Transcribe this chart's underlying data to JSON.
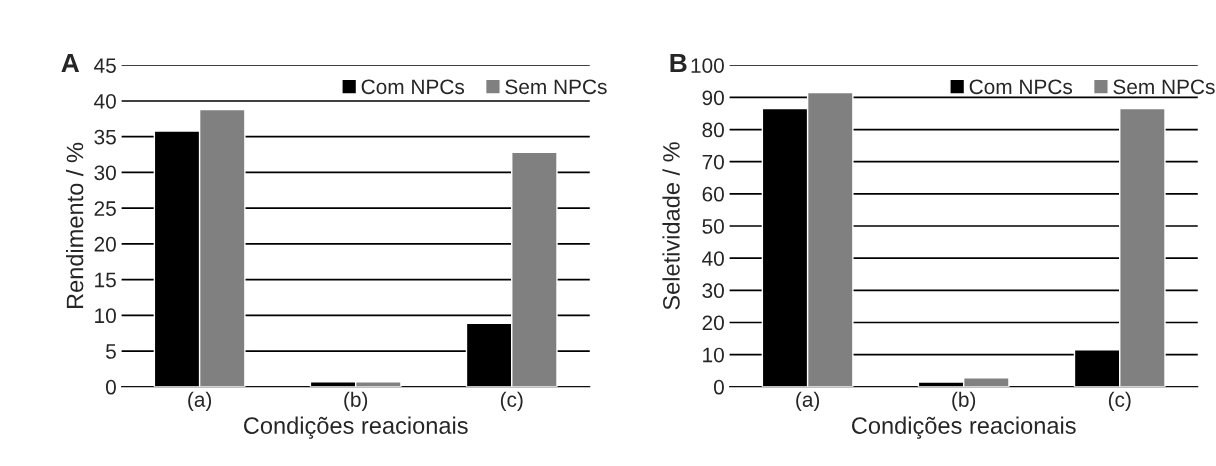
{
  "chart_data": [
    {
      "type": "bar",
      "title": "A",
      "xlabel": "Condições reacionais",
      "ylabel": "Rendimento / %",
      "categories": [
        "(a)",
        "(b)",
        "(c)"
      ],
      "series": [
        {
          "name": "Com NPCs",
          "color": "#000000",
          "values": [
            35.8,
            0.7,
            8.9
          ]
        },
        {
          "name": "Sem NPCs",
          "color": "#808080",
          "values": [
            38.8,
            0.7,
            32.8
          ]
        }
      ],
      "ylim": [
        0,
        45
      ],
      "yticks": [
        0,
        5,
        10,
        15,
        20,
        25,
        30,
        35,
        40,
        45
      ],
      "grid": "y",
      "legend": "top right"
    },
    {
      "type": "bar",
      "title": "B",
      "xlabel": "Condições reacionais",
      "ylabel": "Seletividade / %",
      "categories": [
        "(a)",
        "(b)",
        "(c)"
      ],
      "series": [
        {
          "name": "Com NPCs",
          "color": "#000000",
          "values": [
            86.5,
            1.5,
            11.5
          ]
        },
        {
          "name": "Sem NPCs",
          "color": "#808080",
          "values": [
            91.5,
            2.8,
            86.5
          ]
        }
      ],
      "ylim": [
        0,
        100
      ],
      "yticks": [
        0,
        10,
        20,
        30,
        40,
        50,
        60,
        70,
        80,
        90,
        100
      ],
      "grid": "y",
      "legend": "top right"
    }
  ]
}
